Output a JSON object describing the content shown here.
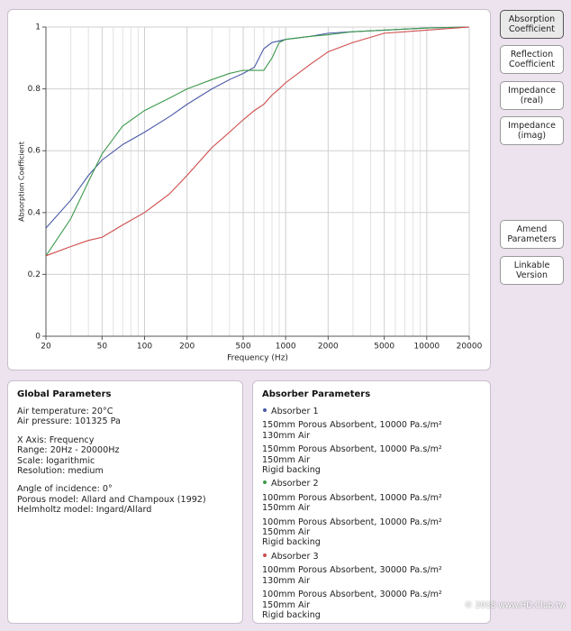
{
  "chart_data": {
    "type": "line",
    "x_label": "Frequency (Hz)",
    "y_label": "Absorption Coefficient",
    "log_x": true,
    "grid": true,
    "x": [
      20,
      30,
      40,
      50,
      70,
      100,
      150,
      200,
      300,
      400,
      500,
      600,
      700,
      800,
      900,
      1000,
      1500,
      2000,
      3000,
      5000,
      10000,
      20000
    ],
    "series": [
      {
        "color": "#4a5aa8",
        "values": [
          0.35,
          0.44,
          0.52,
          0.57,
          0.62,
          0.66,
          0.71,
          0.75,
          0.8,
          0.83,
          0.85,
          0.87,
          0.93,
          0.95,
          0.955,
          0.96,
          0.97,
          0.98,
          0.985,
          0.99,
          0.997,
          1
        ]
      },
      {
        "color": "#3d9a4c",
        "values": [
          0.26,
          0.38,
          0.5,
          0.59,
          0.68,
          0.73,
          0.77,
          0.8,
          0.83,
          0.85,
          0.86,
          0.86,
          0.86,
          0.9,
          0.95,
          0.96,
          0.97,
          0.975,
          0.985,
          0.99,
          0.997,
          1
        ]
      },
      {
        "color": "#cf4b4b",
        "values": [
          0.26,
          0.29,
          0.31,
          0.32,
          0.36,
          0.4,
          0.46,
          0.52,
          0.61,
          0.66,
          0.7,
          0.73,
          0.75,
          0.78,
          0.8,
          0.82,
          0.88,
          0.92,
          0.95,
          0.98,
          0.99,
          1
        ]
      }
    ],
    "xlim": [
      20,
      20000
    ],
    "xticks": [
      20,
      50,
      100,
      200,
      500,
      1000,
      2000,
      5000,
      10000,
      20000
    ],
    "x_minor_ticks": [
      30,
      40,
      60,
      70,
      80,
      90,
      300,
      400,
      600,
      700,
      800,
      900,
      3000,
      4000,
      6000,
      7000,
      8000,
      9000
    ],
    "ylim": [
      0,
      1
    ],
    "yticks": [
      0,
      0.2,
      0.4,
      0.6,
      0.8,
      1
    ]
  },
  "buttons": [
    "Absorption Coefficient",
    "Reflection Coefficient",
    "Impedance (real)",
    "Impedance (imag)",
    "Amend Parameters",
    "Linkable Version"
  ],
  "global_parameters": {
    "title": "Global Parameters",
    "groups": [
      [
        "Air temperature: 20°C",
        "Air pressure: 101325 Pa"
      ],
      [
        "X Axis: Frequency",
        "Range: 20Hz - 20000Hz",
        "Scale: logarithmic",
        "Resolution: medium"
      ],
      [
        "Angle of incidence: 0°",
        "Porous model: Allard and Champoux (1992)",
        "Helmholtz model: Ingard/Allard"
      ]
    ]
  },
  "absorber_parameters": {
    "title": "Absorber Parameters",
    "absorbers": [
      {
        "name": "Absorber 1",
        "blocks": [
          [
            "150mm Porous Absorbent, 10000 Pa.s/m²",
            "130mm Air"
          ],
          [
            "150mm Porous Absorbent, 10000 Pa.s/m²",
            "150mm Air",
            "Rigid backing"
          ]
        ]
      },
      {
        "name": "Absorber 2",
        "blocks": [
          [
            "100mm Porous Absorbent, 10000 Pa.s/m²",
            "150mm Air"
          ],
          [
            "100mm Porous Absorbent, 10000 Pa.s/m²",
            "150mm Air",
            "Rigid backing"
          ]
        ]
      },
      {
        "name": "Absorber 3",
        "blocks": [
          [
            "100mm Porous Absorbent, 30000 Pa.s/m²",
            "130mm Air"
          ],
          [
            "100mm Porous Absorbent, 30000 Pa.s/m²",
            "150mm Air",
            "Rigid backing"
          ]
        ]
      }
    ]
  },
  "watermark": "© 2018 www.HD.Club.tw"
}
